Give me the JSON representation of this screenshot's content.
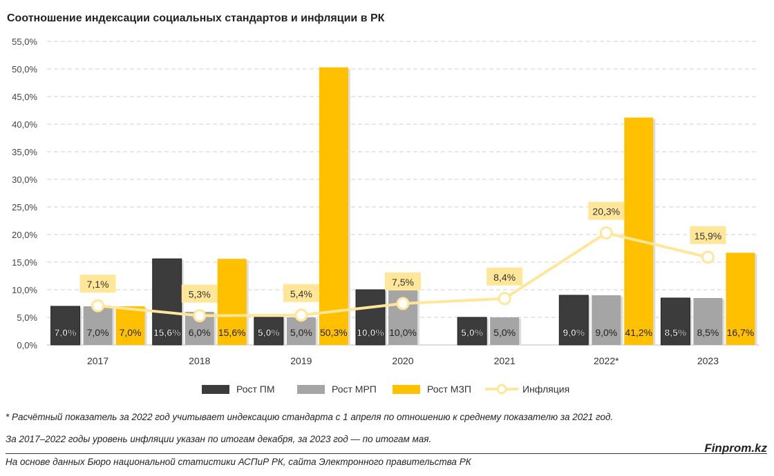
{
  "chart_data": {
    "type": "bar",
    "title": "Соотношение индексации социальных стандартов и инфляции в РК",
    "categories": [
      "2017",
      "2018",
      "2019",
      "2020",
      "2021",
      "2022*",
      "2023"
    ],
    "ylim": [
      0,
      55
    ],
    "yticks": [
      "0,0%",
      "5,0%",
      "10,0%",
      "15,0%",
      "20,0%",
      "25,0%",
      "30,0%",
      "35,0%",
      "40,0%",
      "45,0%",
      "50,0%",
      "55,0%"
    ],
    "grid": true,
    "legend_position": "bottom",
    "series": [
      {
        "name": "Рост ПМ",
        "kind": "bar",
        "color": "#3c3c3c",
        "values": [
          7.0,
          15.6,
          5.0,
          10.0,
          5.0,
          9.0,
          8.5
        ],
        "labels": [
          "7,0%",
          "15,6%",
          "5,0%",
          "10,0%",
          "5,0%",
          "9,0%",
          "8,5%"
        ]
      },
      {
        "name": "Рост МРП",
        "kind": "bar",
        "color": "#a5a5a5",
        "values": [
          7.0,
          6.0,
          5.0,
          10.0,
          5.0,
          9.0,
          8.5
        ],
        "labels": [
          "7,0%",
          "6,0%",
          "5,0%",
          "10,0%",
          "5,0%",
          "9,0%",
          "8,5%"
        ]
      },
      {
        "name": "Рост МЗП",
        "kind": "bar",
        "color": "#ffc000",
        "values": [
          7.0,
          15.6,
          50.3,
          null,
          null,
          41.2,
          16.7
        ],
        "labels": [
          "7,0%",
          "15,6%",
          "50,3%",
          "",
          "",
          "41,2%",
          "16,7%"
        ]
      },
      {
        "name": "Инфляция",
        "kind": "line",
        "color": "#ffe699",
        "values": [
          7.1,
          5.3,
          5.4,
          7.5,
          8.4,
          20.3,
          15.9
        ],
        "labels": [
          "7,1%",
          "5,3%",
          "5,4%",
          "7,5%",
          "8,4%",
          "20,3%",
          "15,9%"
        ]
      }
    ]
  },
  "notes": [
    "* Расчётный показатель за 2022 год учитывает индексацию стандарта с 1 апреля по отношению к среднему показателю за 2021 год.",
    "За 2017–2022 годы уровень инфляции указан по итогам декабря, за 2023 год — по итогам мая.",
    "На основе данных Бюро национальной статистики АСПиР РК, сайта Электронного правительства РК"
  ],
  "brand": "Finprom.kz"
}
